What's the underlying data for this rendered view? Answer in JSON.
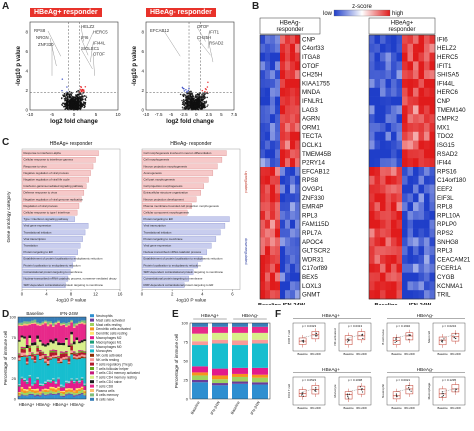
{
  "panel_labels": [
    "A",
    "B",
    "C",
    "D",
    "E",
    "F"
  ],
  "panelA": {
    "plots": [
      {
        "title": "HBeAg+ responder",
        "xlabel": "log2 fold change",
        "ylabel": "-log10 p value",
        "xticks": [
          "-10",
          "-5",
          "0",
          "5",
          "10"
        ],
        "yticks": [
          "0",
          "2",
          "4",
          "6",
          "8"
        ],
        "labels_left": [
          "RPS8",
          "NRGN",
          "ZNF330"
        ],
        "labels_right": [
          "HELZ2",
          "HERC5",
          "IFI6",
          "IFI44L",
          "SIGLEC1",
          "OTOF"
        ]
      },
      {
        "title": "HBeAg- responder",
        "xlabel": "log2 fold change",
        "ylabel": "-log10 p value",
        "xticks": [
          "-10",
          "-7.5",
          "-5",
          "-2.5",
          "0",
          "2.5",
          "5",
          "7.5"
        ],
        "yticks": [
          "0",
          "2",
          "4",
          "6",
          "8"
        ],
        "labels_left": [
          "EFCAB12"
        ],
        "labels_right": [
          "OTOF",
          "IFIT1",
          "CH25H",
          "RSAD2"
        ]
      }
    ]
  },
  "panelB": {
    "legend_low": "low",
    "legend_title": "z-score",
    "legend_high": "high",
    "group_left": "HBeAg- responder",
    "group_right": "HBeAg+ responder",
    "genes_left": [
      "CNP",
      "C4orf33",
      "ITGA8",
      "OTOF",
      "CH25H",
      "KIAA1755",
      "MNDA",
      "IFNLR1",
      "LAG3",
      "AGRN",
      "ORM1",
      "TECTA",
      "DCLK1",
      "TMEM45B",
      "P2RY14",
      "EFCAB12",
      "RPS8",
      "OVGP1",
      "ZNF330",
      "EMR4P",
      "RPL3",
      "FAM115D",
      "RPL7A",
      "APOC4",
      "GLTSCR2",
      "WDR31",
      "C17orf89",
      "BEX5",
      "LOXL3",
      "GNMT"
    ],
    "genes_right": [
      "IFI6",
      "HELZ2",
      "HERC5",
      "IFIT1",
      "SHISA5",
      "IFI44L",
      "HERC6",
      "CNP",
      "TMEM140",
      "CMPK2",
      "MX1",
      "TDO2",
      "ISG15",
      "RSAD2",
      "IFI44",
      "RPS16",
      "C14orf180",
      "EEF2",
      "EIF3L",
      "RPL8",
      "RPL10A",
      "RPLP0",
      "RPS2",
      "SNHG8",
      "RPL3",
      "CEACAM21",
      "FCER1A",
      "CYGB",
      "KCNMA1",
      "TRIL"
    ],
    "bottom_left": "Baseline IFN-24W",
    "bottom_right_a": "Baseline",
    "bottom_right_b": "IFN-24W",
    "colors": {
      "low": "#1f3ec9",
      "mid": "#ffffff",
      "high": "#e01b1b"
    }
  },
  "panelC": {
    "left_title": "HBeAg+ responder",
    "right_title": "HBeAg- responder",
    "ylabel": "Gene ontology category",
    "xlabel": "-log10 P value",
    "cat_up": "upregulated",
    "cat_down": "downregulated",
    "left_xticks": [
      "0",
      "4",
      "8",
      "12",
      "16"
    ],
    "right_xticks": [
      "0",
      "2",
      "4",
      "6"
    ],
    "left_terms": [
      "Response to interferon-alpha",
      "Cellular response to interferon-gamma",
      "Response to virus",
      "Negative regulation of viral process",
      "Negative regulation of viral life cycle",
      "Interferon-gamma-mediated signaling pathway",
      "Defense response to virus",
      "Negative regulation of viral genome replication",
      "Regulation of viral process",
      "Cellular response to type I interferon",
      "Type I interferon signaling pathway",
      "Viral gene expression",
      "Translational initiation",
      "Viral transcription",
      "Translation",
      "Protein targeting to ER",
      "Establishment of protein localization to endoplasmic reticulum",
      "Protein localization to endoplasmic reticulum",
      "Cotranslational protein targeting to membrane",
      "Nuclear-transcribed mRNA catabolic process, nonsense-mediated decay",
      "SRP-dependent cotranslational protein targeting to membrane"
    ],
    "right_terms": [
      "Cell morphogenesis involved in neuron differentiation",
      "Cell morphogenesis",
      "Neuron projection morphogenesis",
      "Axonogenesis",
      "Cell part morphogenesis",
      "Cell projection morphogenesis",
      "Extracellular structure organization",
      "Neuron projection development",
      "Plasma membrane bounded cell projection morphogenesis",
      "Cellular component morphogenesis",
      "Protein targeting to ER",
      "Viral transcription",
      "Translational initiation",
      "Protein targeting to membrane",
      "Viral gene expression",
      "Nuclear-transcribed mRNA catabolic process",
      "Establishment of protein localization to endoplasmic reticulum",
      "Protein localization to endoplasmic reticulum",
      "SRP-dependent cotranslational protein targeting to membrane",
      "Cotranslational protein targeting to membrane",
      "RRP-dependent cotranslational protein targeting to ER"
    ],
    "left_values": [
      12.5,
      12.0,
      11.6,
      11.2,
      10.9,
      10.5,
      10.1,
      9.7,
      9.3,
      9.0,
      8.6,
      10.8,
      10.3,
      9.9,
      9.5,
      9.1,
      8.7,
      8.3,
      7.9,
      7.5,
      7.1
    ],
    "right_values": [
      5.6,
      5.3,
      5.0,
      4.7,
      4.4,
      4.1,
      3.9,
      3.6,
      3.3,
      3.0,
      5.8,
      5.5,
      5.2,
      4.9,
      4.6,
      4.3,
      4.0,
      3.7,
      3.4,
      3.1,
      2.8
    ],
    "left_xmax": 16,
    "right_xmax": 6.5,
    "n_up": 10,
    "colors": {
      "up": "#f6c9c9",
      "up_edge": "#d98a8a",
      "down": "#c8cdee",
      "down_edge": "#8b93cf"
    }
  },
  "panelD": {
    "ylabel": "Percentage of immune cell",
    "yticks": [
      "0",
      "25",
      "50",
      "75",
      "100"
    ],
    "group_top_left": "Baseline",
    "group_top_right": "IFN-24W",
    "group_bottom": [
      "HBeAg+",
      "HBeAg-",
      "HBeAg+",
      "HBeAg-"
    ],
    "legend": [
      "Neutrophils",
      "Mast cells activated",
      "Mast cells resting",
      "Dendritic cells activated",
      "Dendritic cells resting",
      "Macrophages M2",
      "Macrophages M1",
      "Macrophages M0",
      "Monocytes",
      "NK cells activated",
      "NK cells resting",
      "T cells regulatory (Tregs)",
      "T cells follicular helper",
      "T cells CD4 memory activated",
      "T cells CD4 memory resting",
      "T cells CD4 naive",
      "T cells CD8",
      "Plasma cells",
      "B cells memory",
      "B cells naive"
    ],
    "colors": [
      "#2f8fd0",
      "#6a3d9a",
      "#9fd35f",
      "#f7941d",
      "#ffe36e",
      "#e31a8c",
      "#1b9e77",
      "#a6cee3",
      "#17becf",
      "#8c2d04",
      "#fb9a99",
      "#b2182b",
      "#66a61e",
      "#c51b7d",
      "#d9ef8b",
      "#1a1a1a",
      "#e7298a",
      "#fdbf6f",
      "#7fbf7b",
      "#377eb8"
    ],
    "chart_data": {
      "type": "bar",
      "stacked": true,
      "n_samples": 26,
      "ylim": [
        0,
        100
      ]
    }
  },
  "panelE": {
    "ylabel": "Percentage of immune cell",
    "yticks": [
      "0",
      "25",
      "50",
      "75",
      "100"
    ],
    "groups": [
      "HBeAg+",
      "HBeAg-"
    ],
    "xlabels": [
      "Baseline",
      "IFN-24W",
      "Baseline",
      "IFN-24W"
    ],
    "chart_data": {
      "type": "bar",
      "stacked": true,
      "categories": [
        "Baseline",
        "IFN-24W",
        "Baseline",
        "IFN-24W"
      ],
      "ylim": [
        0,
        100
      ],
      "series": [
        {
          "name": "Neutrophils",
          "values": [
            22,
            18,
            20,
            19
          ]
        },
        {
          "name": "Mast cells activated",
          "values": [
            3,
            3,
            3,
            3
          ]
        },
        {
          "name": "Mast cells resting",
          "values": [
            6,
            5,
            6,
            6
          ]
        },
        {
          "name": "Dendritic cells activated",
          "values": [
            4,
            5,
            4,
            4
          ]
        },
        {
          "name": "Macrophages M2",
          "values": [
            8,
            9,
            8,
            9
          ]
        },
        {
          "name": "Monocytes",
          "values": [
            28,
            33,
            30,
            32
          ]
        },
        {
          "name": "NK cells resting",
          "values": [
            5,
            5,
            6,
            5
          ]
        },
        {
          "name": "T cells CD4 memory resting",
          "values": [
            10,
            9,
            10,
            9
          ]
        },
        {
          "name": "T cells CD8",
          "values": [
            9,
            8,
            8,
            8
          ]
        },
        {
          "name": "B cells naive",
          "values": [
            5,
            5,
            5,
            5
          ]
        }
      ]
    }
  },
  "panelF": {
    "groups": [
      {
        "title": "HBeAg+",
        "plots": [
          {
            "ylabel": "CD8 T cell",
            "p": "p = 0.0323",
            "x": [
              "Baseline",
              "IFN-24W"
            ]
          },
          {
            "ylabel": "NK activated",
            "p": "p = 0.0313",
            "x": [
              "Baseline",
              "IFN-24W"
            ]
          }
        ]
      },
      {
        "title": "HBeAg-",
        "plots": [
          {
            "ylabel": "B cell naive",
            "p": "p = 0.1992",
            "x": [
              "Baseline",
              "IFN-24W"
            ]
          },
          {
            "ylabel": "Mast cell",
            "p": "p = 0.0234",
            "x": [
              "Baseline",
              "IFN-24W"
            ]
          }
        ]
      },
      {
        "title": "HBeAg+",
        "plots": [
          {
            "ylabel": "CD4 T cell",
            "p": "p = 0.0523",
            "x": [
              "Baseline",
              "IFN-24W"
            ]
          },
          {
            "ylabel": "Monocyte",
            "p": "p = 0.1098",
            "x": [
              "Baseline",
              "IFN-24W"
            ]
          }
        ]
      },
      {
        "title": "HBeAg-",
        "plots": [
          {
            "ylabel": "Neutrophil",
            "p": "p = 0.0021",
            "x": [
              "Baseline",
              "IFN-24W"
            ]
          },
          {
            "ylabel": "Macrophage",
            "p": "p = 0.1295",
            "x": [
              "Baseline",
              "IFN-24W"
            ]
          }
        ]
      }
    ]
  }
}
